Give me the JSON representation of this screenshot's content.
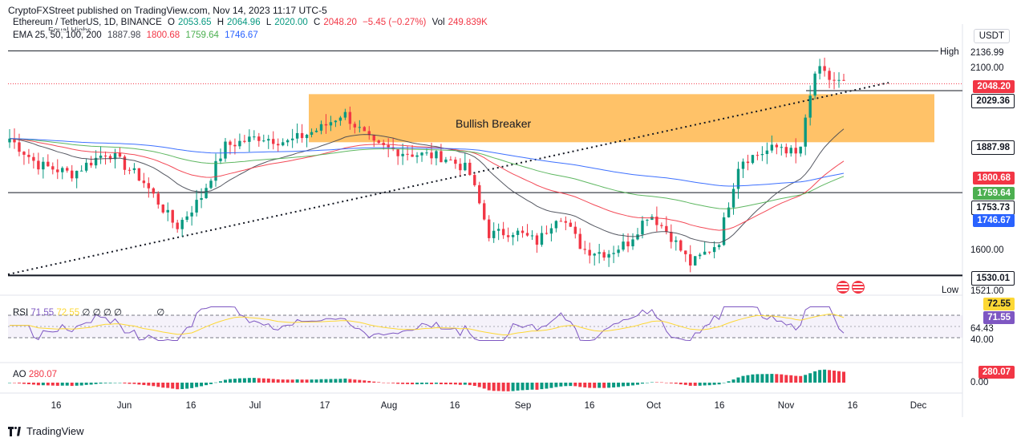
{
  "header": {
    "credit": "CryptoFXStreet published on TradingView.com, Nov 14, 2023 11:17 UTC-5",
    "symbol": "Ethereum / TetherUS, 1D, BINANCE",
    "open_label": "O",
    "open": "2053.65",
    "high_label": "H",
    "high": "2064.96",
    "low_label": "L",
    "low": "2020.00",
    "close_label": "C",
    "close": "2048.20",
    "change": "−5.45 (−0.27%)",
    "vol_label": "Vol",
    "vol": "249.839K",
    "equal_highs": "Equal Highs",
    "ema_label": "EMA 25, 50, 100, 200",
    "ema25": "1887.98",
    "ema50": "1800.68",
    "ema100": "1759.64",
    "ema200": "1746.67"
  },
  "price_axis": {
    "currency": "USDT",
    "high_label": "High",
    "high_value": "2136.99",
    "low_label": "Low",
    "low_value": "1521.00",
    "ticks": [
      "2100.00",
      "1600.00"
    ],
    "tags": {
      "last": "2048.20",
      "support": "2029.36",
      "ema25": "1887.98",
      "ema50": "1800.68",
      "ema100": "1759.64",
      "level": "1753.73",
      "ema200": "1746.67",
      "bottom": "1530.01"
    }
  },
  "zone_label": "Bullish Breaker",
  "rsi": {
    "label": "RSI",
    "value": "71.55",
    "ma": "72.55",
    "extra": [
      "∅",
      "∅",
      "∅",
      "∅",
      "∅"
    ],
    "ticks": [
      "64.43",
      "40.00"
    ],
    "tag_value": "71.55",
    "tag_ma": "72.55"
  },
  "ao": {
    "label": "AO",
    "value": "280.07",
    "tag": "280.07",
    "zero": "0.00"
  },
  "time_axis": [
    "16",
    "Jun",
    "16",
    "Jul",
    "17",
    "Aug",
    "16",
    "Sep",
    "16",
    "Oct",
    "16",
    "Nov",
    "16",
    "Dec"
  ],
  "footer": {
    "brand": "TradingView"
  },
  "colors": {
    "up": "#089981",
    "down": "#f23645",
    "ema25": "#434651",
    "ema50": "#f23645",
    "ema100": "#4caf50",
    "ema200": "#2962ff",
    "zone": "#ffb74d",
    "rsi": "#7e57c2",
    "rsi_ma": "#fdd835"
  },
  "chart_data": {
    "type": "candlestick",
    "pair": "ETH/USDT",
    "timeframe": "1D",
    "x_range": [
      "2023-05-10",
      "2023-12-05"
    ],
    "y_range": [
      1520,
      2140
    ],
    "last_close": 2048.2,
    "horizontal_levels": [
      2136.99,
      2029.36,
      1753.73,
      1530.01
    ],
    "zone": {
      "label": "Bullish Breaker",
      "from": 1890,
      "to": 2020
    },
    "ema_last": {
      "ema25": 1887.98,
      "ema50": 1800.68,
      "ema100": 1759.64,
      "ema200": 1746.67
    },
    "rsi_last": 71.55,
    "rsi_ma_last": 72.55,
    "ao_last": 280.07
  }
}
